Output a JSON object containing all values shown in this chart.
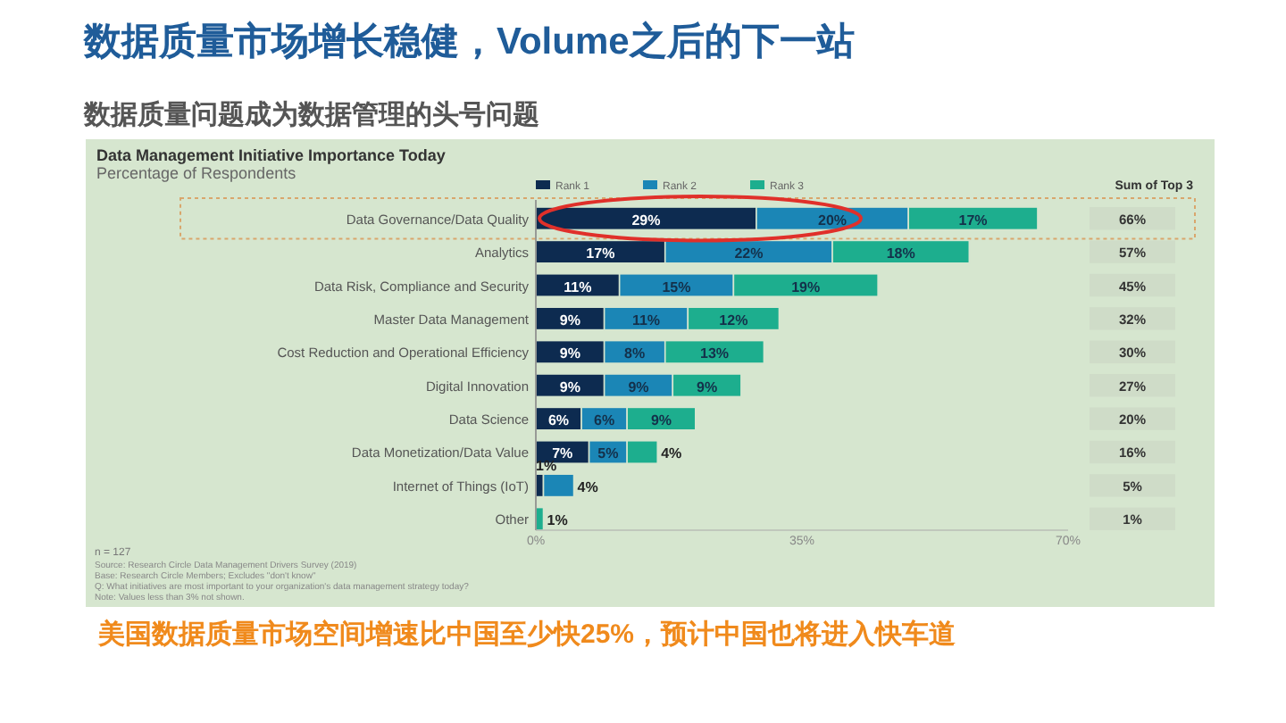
{
  "chart_data": {
    "type": "bar",
    "orientation": "horizontal",
    "stacked": true,
    "title": "数据质量市场增长稳健，Volume之后的下一站",
    "subtitle": "数据质量问题成为数据管理的头号问题",
    "annotations": [
      "Data Management Initiative Importance Today",
      "Percentage of Respondents",
      "Sum of Top 3",
      "n = 127",
      "Source: Research Circle Data Management Drivers Survey (2019)",
      "Base: Research Circle Members; Excludes \"don't know\"",
      "Q: What initiatives are most important to your organization's data management strategy today?",
      "Note: Values less than 3% not shown.",
      "美国数据质量市场空间增速比中国至少快25%，预计中国也将进入快车道",
      "66%",
      "57%",
      "45%",
      "32%",
      "30%",
      "27%",
      "20%",
      "16%",
      "5%",
      "1%"
    ],
    "categories": [
      "Data Governance/Data Quality",
      "Analytics",
      "Data Risk, Compliance and Security",
      "Master Data Management",
      "Cost Reduction and Operational Efficiency",
      "Digital Innovation",
      "Data Science",
      "Data Monetization/Data Value",
      "Internet of Things (IoT)",
      "Other"
    ],
    "series": [
      {
        "name": "Rank 1",
        "color": "#0d2b50",
        "values": [
          29,
          17,
          11,
          9,
          9,
          9,
          6,
          7,
          1,
          null
        ],
        "value_labels": [
          "29%",
          "17%",
          "11%",
          "9%",
          "9%",
          "9%",
          "6%",
          "7%",
          "1%",
          null
        ]
      },
      {
        "name": "Rank 2",
        "color": "#1b86b6",
        "values": [
          20,
          22,
          15,
          11,
          8,
          9,
          6,
          5,
          4,
          null
        ],
        "value_labels": [
          "20%",
          "22%",
          "15%",
          "11%",
          "8%",
          "9%",
          "6%",
          "5%",
          "4%",
          null
        ]
      },
      {
        "name": "Rank 3",
        "color": "#1dae8e",
        "values": [
          17,
          18,
          19,
          12,
          13,
          9,
          9,
          4,
          null,
          1
        ],
        "value_labels": [
          "17%",
          "18%",
          "19%",
          "12%",
          "13%",
          "9%",
          "9%",
          "4%",
          null,
          "1%"
        ]
      }
    ],
    "xlim": [
      0,
      70
    ],
    "xticks": [
      {
        "value": 0,
        "label": "0%"
      },
      {
        "value": 35,
        "label": "35%"
      },
      {
        "value": 70,
        "label": "70%"
      }
    ],
    "legend": "top"
  }
}
